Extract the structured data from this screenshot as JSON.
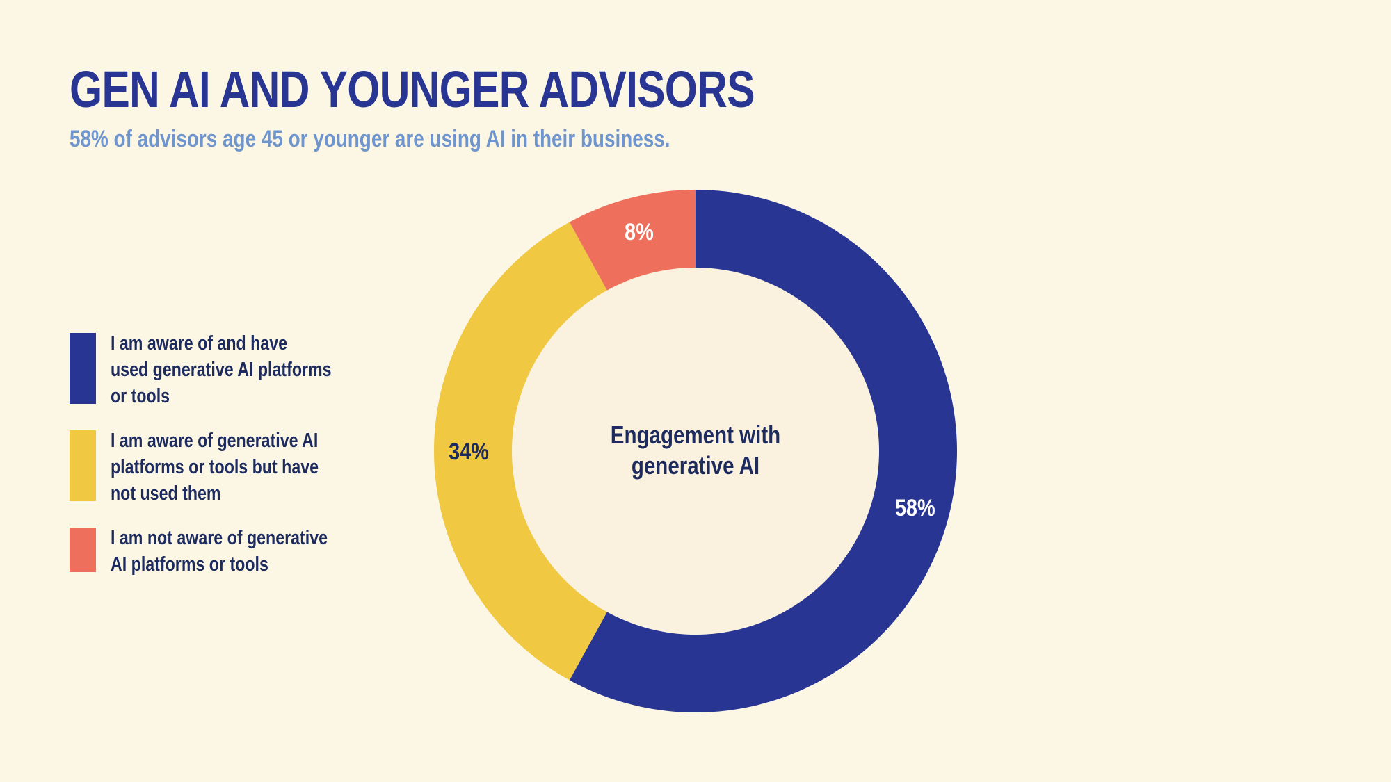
{
  "header": {
    "title": "GEN AI AND YOUNGER ADVISORS",
    "subtitle": "58% of advisors age 45 or younger are using AI in their business."
  },
  "chart_data": {
    "type": "pie",
    "donut": true,
    "center_label": [
      "Engagement with",
      "generative AI"
    ],
    "categories": [
      "I am aware of and have used generative AI platforms or tools",
      "I am aware of generative AI platforms or tools but have not used them",
      "I am not aware of generative AI platforms or tools"
    ],
    "values": [
      58,
      34,
      8
    ],
    "value_labels": [
      "58%",
      "34%",
      "8%"
    ],
    "colors": [
      "#283593",
      "#f0c841",
      "#ee705c"
    ],
    "label_colors": [
      "#ffffff",
      "#1e2b5e",
      "#ffffff"
    ],
    "legend_position": "left"
  },
  "legend": [
    {
      "lines": [
        "I am aware of and have",
        "used generative AI platforms",
        "or tools"
      ]
    },
    {
      "lines": [
        "I am aware of generative AI",
        "platforms or tools but have",
        "not used them"
      ]
    },
    {
      "lines": [
        "I am not aware of generative",
        "AI platforms or tools"
      ]
    }
  ]
}
